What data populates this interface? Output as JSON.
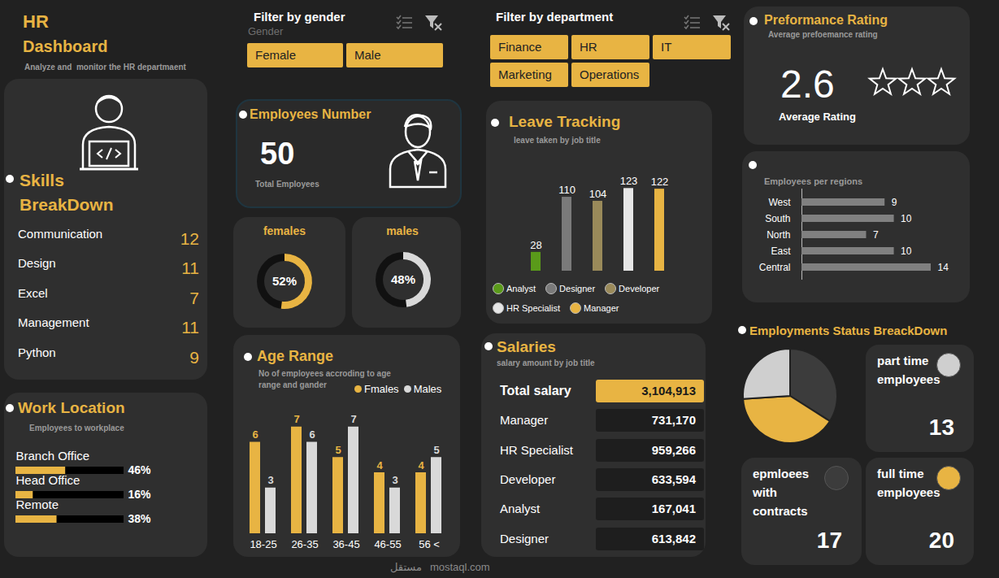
{
  "header": {
    "title": "HR",
    "subtitle": "Dashboard",
    "caption": "Analyze and  monitor the HR departmaent"
  },
  "filters": [
    {
      "title": "Filter by gender",
      "field": "Gender",
      "options": [
        "Female",
        "Male"
      ]
    },
    {
      "title": "Filter by department",
      "options": [
        "Finance",
        "HR",
        "IT",
        "Marketing",
        "Operations"
      ]
    }
  ],
  "skills": {
    "title": "Skills BreakDown",
    "items": [
      {
        "label": "Communication",
        "value": 12
      },
      {
        "label": "Design",
        "value": 11
      },
      {
        "label": "Excel",
        "value": 7
      },
      {
        "label": "Management",
        "value": 11
      },
      {
        "label": "Python",
        "value": 9
      }
    ]
  },
  "employees": {
    "title": "Employees Number",
    "value": 50,
    "caption": "Total Employees"
  },
  "performance": {
    "title": "Preformance Rating",
    "subtitle": "Average prefoemance rating",
    "value": 2.6,
    "caption": "Average Rating"
  },
  "salaries": {
    "title": "Salaries",
    "subtitle": "salary amount by job title",
    "rows": [
      [
        "Total salary",
        "3,104,913"
      ],
      [
        "Manager",
        "731,170"
      ],
      [
        "HR Specialist",
        "959,266"
      ],
      [
        "Developer",
        "633,594"
      ],
      [
        "Analyst",
        "167,041"
      ],
      [
        "Designer",
        "613,842"
      ]
    ]
  },
  "watermark": [
    "مستقل",
    "mostaql.com"
  ],
  "chart_data": [
    {
      "type": "bar",
      "title": "Work Location",
      "subtitle": "Employees to workplace",
      "orientation": "horizontal",
      "categories": [
        "Branch Office",
        "Head Office",
        "Remote"
      ],
      "values": [
        46,
        16,
        38
      ],
      "value_labels": [
        "46%",
        "16%",
        "38%"
      ],
      "xlim": [
        0,
        100
      ],
      "color": "#e8b443",
      "data_labels": true,
      "tick_labels": false
    },
    {
      "type": "donut",
      "title": "females",
      "values": [
        52
      ],
      "value_labels": [
        "52%"
      ],
      "ylim": [
        0,
        100
      ],
      "color": "#e8b443",
      "data_labels": true
    },
    {
      "type": "donut",
      "title": "males",
      "values": [
        48
      ],
      "value_labels": [
        "48%"
      ],
      "ylim": [
        0,
        100
      ],
      "color": "#d9d9d9",
      "data_labels": true
    },
    {
      "type": "bar",
      "title": "Age Range",
      "subtitle": "No of employees accroding to age range and gander",
      "categories": [
        "18-25",
        "26-35",
        "36-45",
        "46-55",
        "56 <"
      ],
      "series": [
        {
          "name": "Fmales",
          "color": "#e8b443",
          "values": [
            6,
            7,
            5,
            4,
            4
          ]
        },
        {
          "name": "Males",
          "color": "#d9d9d9",
          "values": [
            3,
            6,
            7,
            3,
            5
          ]
        }
      ],
      "ylim": [
        0,
        8
      ],
      "data_labels": true,
      "tick_labels": "x",
      "legend": "top-right"
    },
    {
      "type": "bar",
      "title": "Leave Tracking",
      "subtitle": "leave taken by job title",
      "categories": [
        "Analyst",
        "Designer",
        "Developer",
        "HR Specialist",
        "Manager"
      ],
      "values": [
        28,
        110,
        104,
        123,
        122
      ],
      "colors": [
        "#5a9a1a",
        "#7a7a7a",
        "#9a8a5a",
        "#e6e6e6",
        "#e8b443"
      ],
      "ylim": [
        0,
        150
      ],
      "data_labels": true,
      "tick_labels": false,
      "legend": "bottom"
    },
    {
      "type": "bar",
      "title": "Employees per regions",
      "orientation": "horizontal",
      "categories": [
        "West",
        "South",
        "North",
        "East",
        "Central"
      ],
      "values": [
        9,
        10,
        7,
        10,
        14
      ],
      "xlim": [
        0,
        14
      ],
      "color": "#808080",
      "data_labels": true,
      "tick_labels": "y"
    },
    {
      "type": "pie",
      "title": "Employments Status BreackDown",
      "categories": [
        "epmloees with contracts",
        "full time employees",
        "part time employees"
      ],
      "values": [
        17,
        20,
        13
      ],
      "colors": [
        "#3c3c3c",
        "#e8b443",
        "#cfcfcf"
      ]
    }
  ]
}
